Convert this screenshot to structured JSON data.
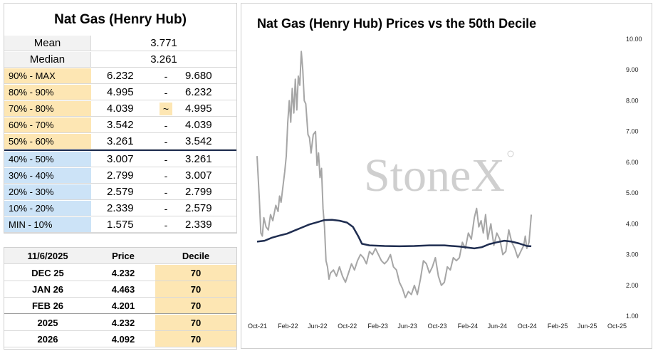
{
  "decile_table": {
    "title": "Nat Gas (Henry Hub)",
    "mean_label": "Mean",
    "mean_value": "3.771",
    "median_label": "Median",
    "median_value": "3.261",
    "rows": [
      {
        "label": "90% - MAX",
        "low": "6.232",
        "sep": "-",
        "high": "9.680"
      },
      {
        "label": "80% - 90%",
        "low": "4.995",
        "sep": "-",
        "high": "6.232"
      },
      {
        "label": "70% - 80%",
        "low": "4.039",
        "sep": "~",
        "high": "4.995"
      },
      {
        "label": "60% - 70%",
        "low": "3.542",
        "sep": "-",
        "high": "4.039"
      },
      {
        "label": "50% - 60%",
        "low": "3.261",
        "sep": "-",
        "high": "3.542"
      },
      {
        "label": "40% - 50%",
        "low": "3.007",
        "sep": "-",
        "high": "3.261"
      },
      {
        "label": "30% - 40%",
        "low": "2.799",
        "sep": "-",
        "high": "3.007"
      },
      {
        "label": "20% - 30%",
        "low": "2.579",
        "sep": "-",
        "high": "2.799"
      },
      {
        "label": "10% - 20%",
        "low": "2.339",
        "sep": "-",
        "high": "2.579"
      },
      {
        "label": "MIN - 10%",
        "low": "1.575",
        "sep": "-",
        "high": "2.339"
      }
    ]
  },
  "curve_table": {
    "headers": [
      "11/6/2025",
      "Price",
      "Decile"
    ],
    "rows": [
      {
        "contract": "DEC 25",
        "price": "4.232",
        "decile": "70"
      },
      {
        "contract": "JAN 26",
        "price": "4.463",
        "decile": "70"
      },
      {
        "contract": "FEB 26",
        "price": "4.201",
        "decile": "70"
      },
      {
        "contract": "2025",
        "price": "4.232",
        "decile": "70"
      },
      {
        "contract": "2026",
        "price": "4.092",
        "decile": "70"
      }
    ]
  },
  "watermark": "StoneX",
  "chart_data": {
    "type": "line",
    "title": "Nat Gas (Henry Hub) Prices vs the 50th Decile",
    "x_tick_labels": [
      "Oct-21",
      "Feb-22",
      "Jun-22",
      "Oct-22",
      "Feb-23",
      "Jun-23",
      "Oct-23",
      "Feb-24",
      "Jun-24",
      "Oct-24",
      "Feb-25",
      "Jun-25",
      "Oct-25"
    ],
    "y_tick_labels": [
      "1.00",
      "2.00",
      "3.00",
      "4.00",
      "5.00",
      "6.00",
      "7.00",
      "8.00",
      "9.00",
      "10.00"
    ],
    "ylim": [
      1,
      10
    ],
    "y_axis_side": "right",
    "grid": false,
    "colors": {
      "price": "#a6a6a6",
      "decile50": "#1f2d50"
    },
    "series": [
      {
        "name": "",
        "values": [
          [
            0,
            6.2
          ],
          [
            0.3,
            4.8
          ],
          [
            0.5,
            3.7
          ],
          [
            0.7,
            3.6
          ],
          [
            0.9,
            4.2
          ],
          [
            1.2,
            3.9
          ],
          [
            1.5,
            3.8
          ],
          [
            1.8,
            4.3
          ],
          [
            2.1,
            4.1
          ],
          [
            2.5,
            4.6
          ],
          [
            2.8,
            4.4
          ],
          [
            3.0,
            4.9
          ],
          [
            3.2,
            4.7
          ],
          [
            3.5,
            5.3
          ],
          [
            3.7,
            5.7
          ],
          [
            3.9,
            6.2
          ],
          [
            4.1,
            7.3
          ],
          [
            4.3,
            8.0
          ],
          [
            4.5,
            7.3
          ],
          [
            4.7,
            8.4
          ],
          [
            4.9,
            7.6
          ],
          [
            5.1,
            8.7
          ],
          [
            5.3,
            7.7
          ],
          [
            5.5,
            8.8
          ],
          [
            5.7,
            8.5
          ],
          [
            5.9,
            9.6
          ],
          [
            6.1,
            9.0
          ],
          [
            6.3,
            8.0
          ],
          [
            6.5,
            7.9
          ],
          [
            6.8,
            6.9
          ],
          [
            7.0,
            6.8
          ],
          [
            7.2,
            6.3
          ],
          [
            7.5,
            6.9
          ],
          [
            7.8,
            7.0
          ],
          [
            8.0,
            5.9
          ],
          [
            8.2,
            6.3
          ],
          [
            8.4,
            5.5
          ],
          [
            8.6,
            5.8
          ],
          [
            8.8,
            4.5
          ],
          [
            9.0,
            3.9
          ],
          [
            9.2,
            2.8
          ],
          [
            9.4,
            2.6
          ],
          [
            9.6,
            2.2
          ],
          [
            9.8,
            2.4
          ],
          [
            10.2,
            2.5
          ],
          [
            10.6,
            2.3
          ],
          [
            11.0,
            2.6
          ],
          [
            11.4,
            2.3
          ],
          [
            11.8,
            2.1
          ],
          [
            12.2,
            2.4
          ],
          [
            12.6,
            2.7
          ],
          [
            13.0,
            2.5
          ],
          [
            13.4,
            2.8
          ],
          [
            13.8,
            3.0
          ],
          [
            14.2,
            2.9
          ],
          [
            14.6,
            2.7
          ],
          [
            15.0,
            3.1
          ],
          [
            15.4,
            3.0
          ],
          [
            15.8,
            3.2
          ],
          [
            16.2,
            3.0
          ],
          [
            16.6,
            2.8
          ],
          [
            17.0,
            2.7
          ],
          [
            17.4,
            2.8
          ],
          [
            17.8,
            3.0
          ],
          [
            18.2,
            2.6
          ],
          [
            18.6,
            2.5
          ],
          [
            19.0,
            2.1
          ],
          [
            19.4,
            1.9
          ],
          [
            19.8,
            1.6
          ],
          [
            20.2,
            1.8
          ],
          [
            20.6,
            1.7
          ],
          [
            21.0,
            2.0
          ],
          [
            21.4,
            1.7
          ],
          [
            21.8,
            2.2
          ],
          [
            22.2,
            2.8
          ],
          [
            22.6,
            2.7
          ],
          [
            23.0,
            2.4
          ],
          [
            23.4,
            2.6
          ],
          [
            23.8,
            2.9
          ],
          [
            24.2,
            2.3
          ],
          [
            24.6,
            2.0
          ],
          [
            25.0,
            2.1
          ],
          [
            25.4,
            2.6
          ],
          [
            25.8,
            2.5
          ],
          [
            26.2,
            2.9
          ],
          [
            26.6,
            2.8
          ],
          [
            27.0,
            2.9
          ],
          [
            27.4,
            3.4
          ],
          [
            27.8,
            3.2
          ],
          [
            28.2,
            3.7
          ],
          [
            28.6,
            3.5
          ],
          [
            29.0,
            4.2
          ],
          [
            29.3,
            4.5
          ],
          [
            29.6,
            3.9
          ],
          [
            29.9,
            4.1
          ],
          [
            30.2,
            3.7
          ],
          [
            30.5,
            4.3
          ],
          [
            30.8,
            3.5
          ],
          [
            31.2,
            4.0
          ],
          [
            31.6,
            3.3
          ],
          [
            32.0,
            3.7
          ],
          [
            32.4,
            3.5
          ],
          [
            32.8,
            3.0
          ],
          [
            33.2,
            3.1
          ],
          [
            33.6,
            3.8
          ],
          [
            34.0,
            3.4
          ],
          [
            34.4,
            3.2
          ],
          [
            34.8,
            2.9
          ],
          [
            35.2,
            3.1
          ],
          [
            35.6,
            3.3
          ],
          [
            35.8,
            3.6
          ],
          [
            36.0,
            3.2
          ],
          [
            36.3,
            3.4
          ],
          [
            36.6,
            4.3
          ]
        ]
      },
      {
        "name": "",
        "values": [
          [
            0,
            3.42
          ],
          [
            1,
            3.45
          ],
          [
            2,
            3.55
          ],
          [
            3,
            3.62
          ],
          [
            4,
            3.68
          ],
          [
            5,
            3.78
          ],
          [
            6,
            3.88
          ],
          [
            7,
            3.98
          ],
          [
            8,
            4.05
          ],
          [
            9,
            4.12
          ],
          [
            10,
            4.13
          ],
          [
            11,
            4.1
          ],
          [
            12,
            4.04
          ],
          [
            12.8,
            3.9
          ],
          [
            13.5,
            3.6
          ],
          [
            14,
            3.35
          ],
          [
            15,
            3.3
          ],
          [
            17,
            3.28
          ],
          [
            19,
            3.27
          ],
          [
            21,
            3.28
          ],
          [
            23,
            3.3
          ],
          [
            25,
            3.3
          ],
          [
            27,
            3.26
          ],
          [
            29,
            3.2
          ],
          [
            30,
            3.24
          ],
          [
            31,
            3.34
          ],
          [
            32,
            3.4
          ],
          [
            33,
            3.45
          ],
          [
            34,
            3.42
          ],
          [
            35,
            3.36
          ],
          [
            36,
            3.28
          ],
          [
            36.6,
            3.27
          ]
        ]
      }
    ],
    "x_units": "months since Oct-21"
  }
}
